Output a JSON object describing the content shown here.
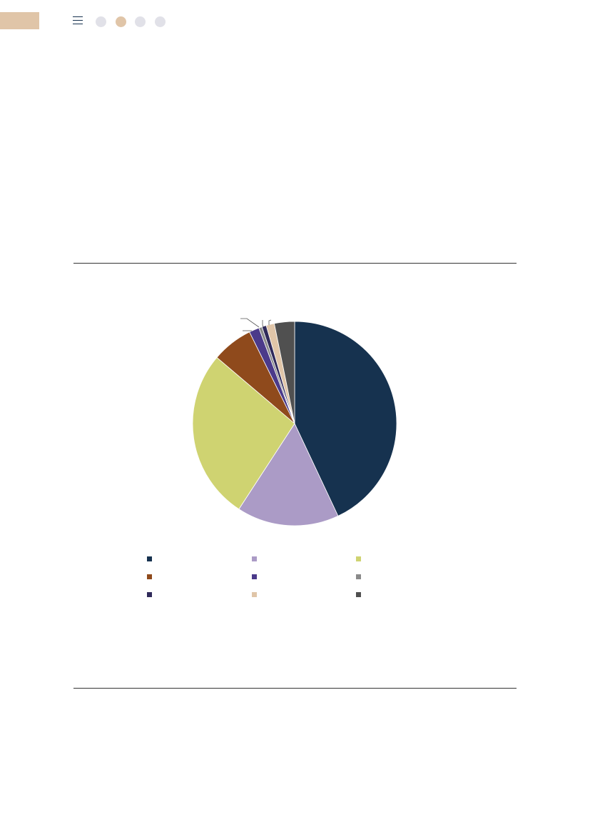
{
  "header": {
    "menu_icon": "hamburger-icon",
    "page_dots": [
      {
        "active": false
      },
      {
        "active": true
      },
      {
        "active": false
      },
      {
        "active": false
      }
    ],
    "accent_color": "#e0c5a8",
    "dot_color": "#e1e1e8"
  },
  "chart_data": {
    "type": "pie",
    "start_angle": "12 o'clock",
    "direction": "clockwise",
    "legend_placement": "bottom",
    "values": [
      43.0,
      16.2,
      27.0,
      6.5,
      1.6,
      0.5,
      0.7,
      1.3,
      3.2
    ],
    "colors": [
      "#16324f",
      "#ab9bc6",
      "#cfd371",
      "#8f4a1c",
      "#4b3a8a",
      "#8a8a8a",
      "#302a5a",
      "#e0c5a8",
      "#505050"
    ]
  }
}
